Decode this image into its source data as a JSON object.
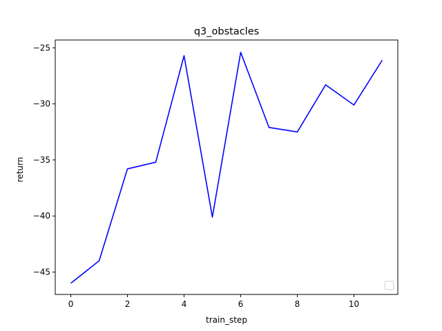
{
  "chart_data": {
    "type": "line",
    "title": "q3_obstacles",
    "xlabel": "train_step",
    "ylabel": "return",
    "xlim": [
      -0.55,
      11.55
    ],
    "ylim": [
      -47.0,
      -24.3
    ],
    "xticks": [
      0,
      2,
      4,
      6,
      8,
      10
    ],
    "xtick_labels": [
      "0",
      "2",
      "4",
      "6",
      "8",
      "10"
    ],
    "yticks": [
      -45,
      -40,
      -35,
      -30,
      -25
    ],
    "ytick_labels": [
      "−45",
      "−40",
      "−35",
      "−30",
      "−25"
    ],
    "grid": false,
    "legend": "lower-right (empty)",
    "series": [
      {
        "color": "#0000ff",
        "x": [
          0,
          1,
          2,
          3,
          4,
          5,
          6,
          7,
          8,
          9,
          10,
          11
        ],
        "y": [
          -46.0,
          -44.0,
          -35.8,
          -35.2,
          -25.7,
          -40.1,
          -25.4,
          -32.1,
          -32.5,
          -28.3,
          -30.1,
          -26.1
        ]
      }
    ]
  }
}
